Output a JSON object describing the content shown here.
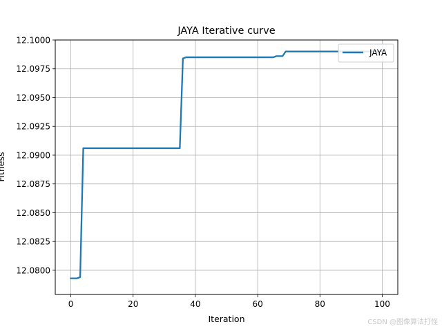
{
  "chart_data": {
    "type": "line",
    "title": "JAYA Iterative curve",
    "xlabel": "Iteration",
    "ylabel": "Fitness",
    "xlim": [
      -5,
      105
    ],
    "ylim": [
      12.0779,
      12.1
    ],
    "x_ticks": [
      0,
      20,
      40,
      60,
      80,
      100
    ],
    "x_tick_labels": [
      "0",
      "20",
      "40",
      "60",
      "80",
      "100"
    ],
    "y_ticks": [
      12.08,
      12.0825,
      12.085,
      12.0875,
      12.09,
      12.0925,
      12.095,
      12.0975,
      12.1
    ],
    "y_tick_labels": [
      "12.0800",
      "12.0825",
      "12.0850",
      "12.0875",
      "12.0900",
      "12.0925",
      "12.0950",
      "12.0975",
      "12.1000"
    ],
    "grid": true,
    "legend_position": "top-right",
    "series": [
      {
        "name": "JAYA",
        "color": "#1f77b4",
        "points": [
          [
            0,
            12.0793
          ],
          [
            2,
            12.0793
          ],
          [
            3,
            12.0794
          ],
          [
            4,
            12.0906
          ],
          [
            35,
            12.0906
          ],
          [
            36,
            12.0984
          ],
          [
            37,
            12.0985
          ],
          [
            65,
            12.0985
          ],
          [
            66,
            12.0986
          ],
          [
            68,
            12.0986
          ],
          [
            69,
            12.099
          ],
          [
            100,
            12.099
          ]
        ]
      }
    ]
  },
  "watermark": "CSDN @图像算法打怪"
}
